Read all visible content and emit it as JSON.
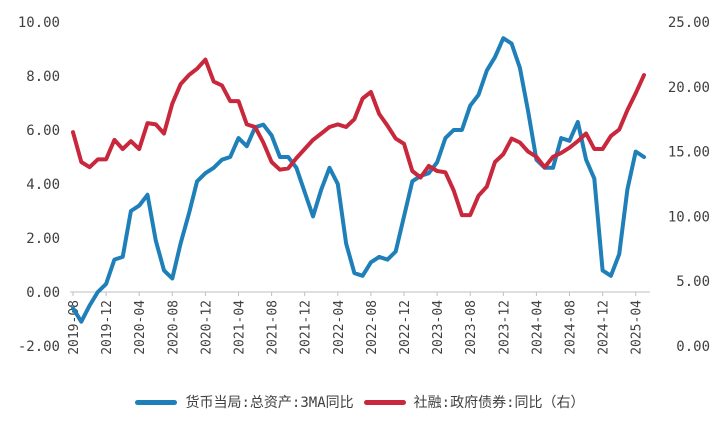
{
  "chart_data": {
    "type": "line",
    "x_ticks": [
      "2019-08",
      "2019-12",
      "2020-04",
      "2020-08",
      "2020-12",
      "2021-04",
      "2021-08",
      "2021-12",
      "2022-04",
      "2022-08",
      "2022-12",
      "2023-04",
      "2023-08",
      "2023-12",
      "2024-04",
      "2024-08",
      "2024-12",
      "2025-04"
    ],
    "y_left": {
      "lim": [
        -2,
        10
      ],
      "ticks": [
        "-2.00",
        "0.00",
        "2.00",
        "4.00",
        "6.00",
        "8.00",
        "10.00"
      ]
    },
    "y_right": {
      "lim": [
        0,
        25
      ],
      "ticks": [
        "0.00",
        "5.00",
        "10.00",
        "15.00",
        "20.00",
        "25.00"
      ]
    },
    "grid": false,
    "legend_position": "bottom",
    "series": [
      {
        "name": "货币当局:总资产:3MA同比",
        "axis": "left",
        "color": "#1f7fb8",
        "x": [
          "2019-08",
          "2019-09",
          "2019-10",
          "2019-11",
          "2019-12",
          "2020-01",
          "2020-02",
          "2020-03",
          "2020-04",
          "2020-05",
          "2020-06",
          "2020-07",
          "2020-08",
          "2020-09",
          "2020-10",
          "2020-11",
          "2020-12",
          "2021-01",
          "2021-02",
          "2021-03",
          "2021-04",
          "2021-05",
          "2021-06",
          "2021-07",
          "2021-08",
          "2021-09",
          "2021-10",
          "2021-11",
          "2021-12",
          "2022-01",
          "2022-02",
          "2022-03",
          "2022-04",
          "2022-05",
          "2022-06",
          "2022-07",
          "2022-08",
          "2022-09",
          "2022-10",
          "2022-11",
          "2022-12",
          "2023-01",
          "2023-02",
          "2023-03",
          "2023-04",
          "2023-05",
          "2023-06",
          "2023-07",
          "2023-08",
          "2023-09",
          "2023-10",
          "2023-11",
          "2023-12",
          "2024-01",
          "2024-02",
          "2024-03",
          "2024-04",
          "2024-05",
          "2024-06",
          "2024-07",
          "2024-08",
          "2024-09",
          "2024-10",
          "2024-11",
          "2024-12",
          "2025-01",
          "2025-02",
          "2025-03",
          "2025-04",
          "2025-05"
        ],
        "values": [
          -0.6,
          -1.1,
          -0.5,
          0.0,
          0.3,
          1.2,
          1.3,
          3.0,
          3.2,
          3.6,
          1.9,
          0.8,
          0.5,
          1.8,
          2.9,
          4.1,
          4.4,
          4.6,
          4.9,
          5.0,
          5.7,
          5.4,
          6.1,
          6.2,
          5.8,
          5.0,
          5.0,
          4.6,
          3.7,
          2.8,
          3.8,
          4.6,
          4.0,
          1.8,
          0.7,
          0.6,
          1.1,
          1.3,
          1.2,
          1.5,
          2.8,
          4.1,
          4.3,
          4.4,
          4.8,
          5.7,
          6.0,
          6.0,
          6.9,
          7.3,
          8.2,
          8.7,
          9.4,
          9.2,
          8.3,
          6.7,
          4.9,
          4.6,
          4.6,
          5.7,
          5.6,
          6.3,
          4.9,
          4.2,
          0.8,
          0.6,
          1.4,
          3.8,
          5.2,
          5.0
        ]
      },
      {
        "name": "社融:政府债券:同比（右）",
        "axis": "right",
        "color": "#c8273c",
        "x": [
          "2019-08",
          "2019-09",
          "2019-10",
          "2019-11",
          "2019-12",
          "2020-01",
          "2020-02",
          "2020-03",
          "2020-04",
          "2020-05",
          "2020-06",
          "2020-07",
          "2020-08",
          "2020-09",
          "2020-10",
          "2020-11",
          "2020-12",
          "2021-01",
          "2021-02",
          "2021-03",
          "2021-04",
          "2021-05",
          "2021-06",
          "2021-07",
          "2021-08",
          "2021-09",
          "2021-10",
          "2021-11",
          "2021-12",
          "2022-01",
          "2022-02",
          "2022-03",
          "2022-04",
          "2022-05",
          "2022-06",
          "2022-07",
          "2022-08",
          "2022-09",
          "2022-10",
          "2022-11",
          "2022-12",
          "2023-01",
          "2023-02",
          "2023-03",
          "2023-04",
          "2023-05",
          "2023-06",
          "2023-07",
          "2023-08",
          "2023-09",
          "2023-10",
          "2023-11",
          "2023-12",
          "2024-01",
          "2024-02",
          "2024-03",
          "2024-04",
          "2024-05",
          "2024-06",
          "2024-07",
          "2024-08",
          "2024-09",
          "2024-10",
          "2024-11",
          "2024-12",
          "2025-01",
          "2025-02",
          "2025-03",
          "2025-04",
          "2025-05"
        ],
        "values": [
          16.5,
          14.2,
          13.8,
          14.4,
          14.4,
          15.9,
          15.2,
          15.8,
          15.2,
          17.2,
          17.1,
          16.4,
          18.7,
          20.2,
          20.9,
          21.4,
          22.1,
          20.4,
          20.1,
          18.9,
          18.9,
          17.1,
          16.9,
          15.7,
          14.2,
          13.6,
          13.7,
          14.5,
          15.2,
          15.9,
          16.4,
          16.9,
          17.1,
          16.9,
          17.5,
          19.1,
          19.6,
          17.9,
          17.0,
          16.0,
          15.6,
          13.5,
          13.0,
          13.9,
          13.5,
          13.4,
          12.0,
          10.1,
          10.1,
          11.6,
          12.3,
          14.2,
          14.8,
          16.0,
          15.7,
          15.0,
          14.6,
          13.8,
          14.6,
          14.9,
          15.3,
          15.8,
          16.4,
          15.2,
          15.2,
          16.2,
          16.7,
          18.2,
          19.5,
          20.9
        ]
      }
    ]
  }
}
